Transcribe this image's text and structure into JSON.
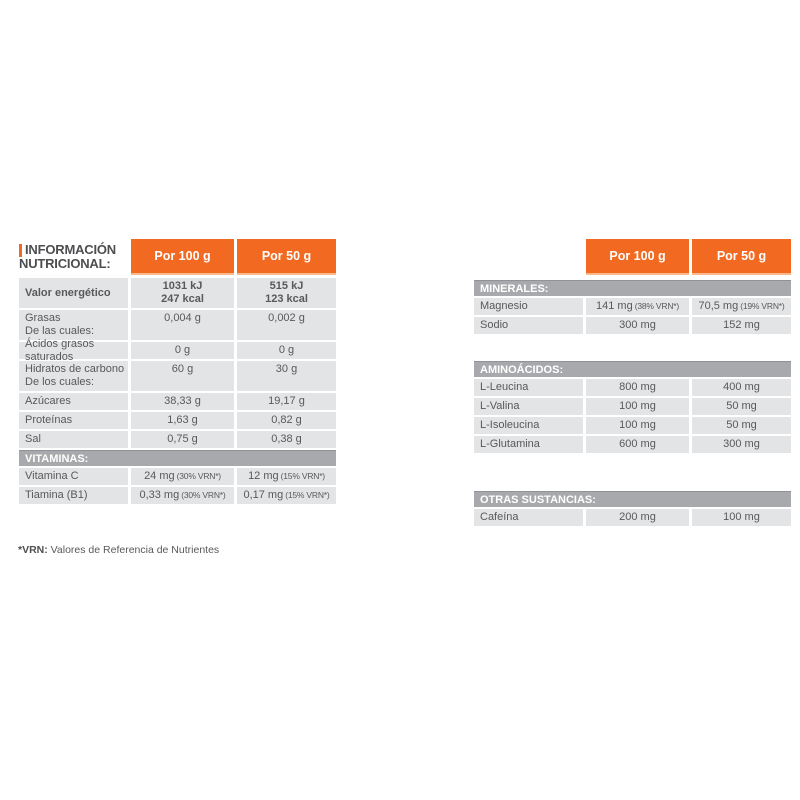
{
  "colors": {
    "orange": "#F26A21",
    "section_bar_gray": "#A7A9AC",
    "row_bg_gray": "#E3E4E5",
    "text_gray": "#58595B",
    "header_text": "#FFFFFF"
  },
  "columns": {
    "per100": "Por 100 g",
    "per50": "Por 50 g"
  },
  "left_table": {
    "title": {
      "line1": "INFORMACIÓN",
      "line2": "NUTRICIONAL:"
    },
    "rows": [
      {
        "label": "Valor energético",
        "v100a": "1031 kJ",
        "v100b": "247 kcal",
        "v50a": "515 kJ",
        "v50b": "123 kcal"
      },
      {
        "label": "Grasas",
        "label2": "De las cuales:",
        "v100": "0,004 g",
        "v50": "0,002 g"
      },
      {
        "label": "Ácidos grasos saturados",
        "v100": "0 g",
        "v50": "0 g"
      },
      {
        "label": "Hidratos de carbono",
        "label2": "De los cuales:",
        "v100": "60 g",
        "v50": "30 g"
      },
      {
        "label": "Azúcares",
        "v100": "38,33 g",
        "v50": "19,17 g"
      },
      {
        "label": "Proteínas",
        "v100": "1,63 g",
        "v50": "0,82 g"
      },
      {
        "label": "Sal",
        "v100": "0,75 g",
        "v50": "0,38 g"
      }
    ],
    "vitamins_title": "VITAMINAS:",
    "vitamin_rows": [
      {
        "label": "Vitamina C",
        "v100": "24 mg",
        "v100_note": "(30% VRN*)",
        "v50": "12 mg",
        "v50_note": "(15% VRN*)"
      },
      {
        "label": "Tiamina (B1)",
        "v100": "0,33 mg",
        "v100_note": "(30% VRN*)",
        "v50": "0,17 mg",
        "v50_note": "(15% VRN*)"
      }
    ]
  },
  "right_table": {
    "sections": [
      {
        "title": "MINERALES:",
        "rows": [
          {
            "label": "Magnesio",
            "v100": "141 mg",
            "v100_note": "(38% VRN*)",
            "v50": "70,5 mg",
            "v50_note": "(19% VRN*)"
          },
          {
            "label": "Sodio",
            "v100": "300 mg",
            "v50": "152 mg"
          }
        ]
      },
      {
        "title": "AMINOÁCIDOS:",
        "rows": [
          {
            "label": "L-Leucina",
            "v100": "800 mg",
            "v50": "400 mg"
          },
          {
            "label": "L-Valina",
            "v100": "100 mg",
            "v50": "50 mg"
          },
          {
            "label": "L-Isoleucina",
            "v100": "100 mg",
            "v50": "50 mg"
          },
          {
            "label": "L-Glutamina",
            "v100": "600 mg",
            "v50": "300 mg"
          }
        ]
      },
      {
        "title": "OTRAS SUSTANCIAS:",
        "rows": [
          {
            "label": "Cafeína",
            "v100": "200 mg",
            "v50": "100 mg"
          }
        ]
      }
    ]
  },
  "footnote": {
    "bold": "*VRN:",
    "text": " Valores de Referencia de Nutrientes"
  }
}
